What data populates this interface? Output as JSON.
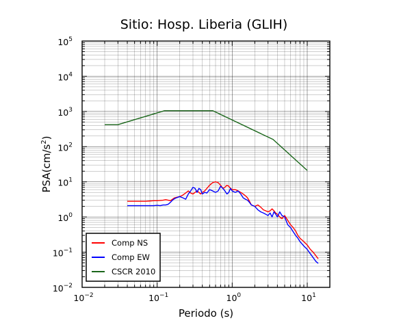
{
  "chart_data": {
    "type": "line",
    "title": "Sitio: Hosp. Liberia (GLIH)",
    "xlabel": "Periodo (s)",
    "ylabel": {
      "base": "PSA(cm/s",
      "sup": "2",
      "close": ")"
    },
    "x_scale": "log",
    "y_scale": "log",
    "xlim": [
      0.01,
      20
    ],
    "ylim": [
      0.01,
      100000
    ],
    "x_ticks": [
      0.01,
      0.1,
      1,
      10
    ],
    "y_ticks": [
      0.01,
      0.1,
      1,
      10,
      100,
      1000,
      10000,
      100000
    ],
    "grid": true,
    "legend_position": "bottom-left",
    "series": [
      {
        "name": "Comp NS",
        "color": "#ff0000",
        "x": [
          0.04,
          0.05,
          0.06,
          0.07,
          0.08,
          0.09,
          0.1,
          0.11,
          0.12,
          0.13,
          0.14,
          0.15,
          0.16,
          0.17,
          0.18,
          0.2,
          0.22,
          0.24,
          0.26,
          0.28,
          0.3,
          0.32,
          0.34,
          0.36,
          0.38,
          0.4,
          0.43,
          0.46,
          0.5,
          0.55,
          0.6,
          0.65,
          0.7,
          0.75,
          0.8,
          0.85,
          0.9,
          0.95,
          1.0,
          1.1,
          1.2,
          1.3,
          1.4,
          1.5,
          1.6,
          1.7,
          1.8,
          2.0,
          2.2,
          2.4,
          2.6,
          2.8,
          3.0,
          3.2,
          3.4,
          3.6,
          3.8,
          4.0,
          4.3,
          4.6,
          5.0,
          5.5,
          6.0,
          6.5,
          7.0,
          7.5,
          8.0,
          9.0,
          10.0,
          11.0,
          12.0,
          13.0,
          14.0
        ],
        "y": [
          2.8,
          2.8,
          2.8,
          2.8,
          2.85,
          2.9,
          2.9,
          2.95,
          3.0,
          3.1,
          3.0,
          2.9,
          3.2,
          3.5,
          3.6,
          3.8,
          4.2,
          4.8,
          5.5,
          4.8,
          4.5,
          5.0,
          5.5,
          5.0,
          4.5,
          5.0,
          5.5,
          6.5,
          8.0,
          9.5,
          10.0,
          9.5,
          8.0,
          6.5,
          7.0,
          8.0,
          7.5,
          6.5,
          6.0,
          6.0,
          5.5,
          5.0,
          4.5,
          4.0,
          3.5,
          2.8,
          2.2,
          2.0,
          2.2,
          1.9,
          1.6,
          1.5,
          1.4,
          1.5,
          1.7,
          1.5,
          1.3,
          1.2,
          1.0,
          0.9,
          1.1,
          0.8,
          0.6,
          0.5,
          0.4,
          0.3,
          0.25,
          0.2,
          0.16,
          0.12,
          0.1,
          0.08,
          0.065
        ]
      },
      {
        "name": "Comp EW",
        "color": "#0000ff",
        "x": [
          0.04,
          0.05,
          0.06,
          0.07,
          0.08,
          0.09,
          0.1,
          0.11,
          0.12,
          0.13,
          0.14,
          0.15,
          0.16,
          0.17,
          0.18,
          0.2,
          0.22,
          0.24,
          0.26,
          0.28,
          0.3,
          0.32,
          0.34,
          0.36,
          0.38,
          0.4,
          0.43,
          0.46,
          0.5,
          0.55,
          0.6,
          0.65,
          0.7,
          0.75,
          0.8,
          0.85,
          0.9,
          0.95,
          1.0,
          1.1,
          1.2,
          1.3,
          1.4,
          1.5,
          1.6,
          1.7,
          1.8,
          2.0,
          2.2,
          2.4,
          2.6,
          2.8,
          3.0,
          3.2,
          3.4,
          3.6,
          3.8,
          4.0,
          4.3,
          4.6,
          5.0,
          5.5,
          6.0,
          6.5,
          7.0,
          7.5,
          8.0,
          9.0,
          10.0,
          11.0,
          12.0,
          13.0,
          14.0
        ],
        "y": [
          2.1,
          2.1,
          2.1,
          2.1,
          2.1,
          2.1,
          2.15,
          2.1,
          2.2,
          2.2,
          2.3,
          2.6,
          3.0,
          3.3,
          3.5,
          3.8,
          3.5,
          3.2,
          4.5,
          5.5,
          7.0,
          6.5,
          5.0,
          6.5,
          6.0,
          4.5,
          5.0,
          4.8,
          6.0,
          5.5,
          5.0,
          5.5,
          7.5,
          6.5,
          5.5,
          4.5,
          5.0,
          6.5,
          5.5,
          5.0,
          5.5,
          4.5,
          3.5,
          3.2,
          3.0,
          2.6,
          2.2,
          2.0,
          1.6,
          1.4,
          1.3,
          1.2,
          1.1,
          1.3,
          1.0,
          1.4,
          1.2,
          1.0,
          1.4,
          1.1,
          1.0,
          0.6,
          0.5,
          0.38,
          0.3,
          0.25,
          0.2,
          0.15,
          0.12,
          0.09,
          0.07,
          0.055,
          0.048
        ]
      },
      {
        "name": "CSCR 2010",
        "color": "#1a661a",
        "x": [
          0.02,
          0.03,
          0.125,
          0.55,
          3.5,
          10.0
        ],
        "y": [
          420,
          420,
          1050,
          1050,
          160,
          21
        ]
      }
    ]
  }
}
